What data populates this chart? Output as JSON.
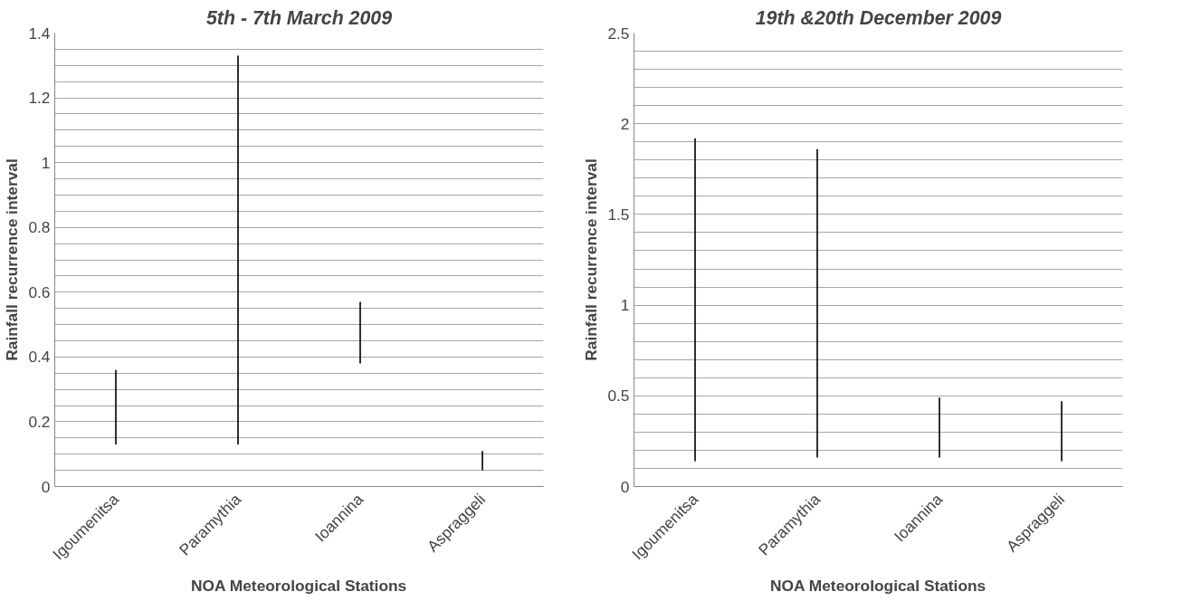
{
  "chart_data": [
    {
      "type": "bar",
      "title": "5th - 7th March 2009",
      "xlabel": "NOA Meteorological Stations",
      "ylabel": "Rainfall recurrence interval",
      "categories": [
        "Igoumenitsa",
        "Paramythia",
        "Ioannina",
        "Aspraggeli"
      ],
      "base": [
        0.13,
        0.13,
        0.38,
        0.05
      ],
      "values": [
        0.23,
        1.2,
        0.19,
        0.06
      ],
      "color": "#000000",
      "ylim": [
        0,
        1.4
      ],
      "yticks": [
        0,
        {
          "value": 0.05,
          "label": null
        },
        {
          "value": 0.1,
          "label": null
        },
        {
          "value": 0.15,
          "label": null
        },
        0.2,
        {
          "value": 0.25,
          "label": null
        },
        {
          "value": 0.3,
          "label": null
        },
        {
          "value": 0.35,
          "label": null
        },
        0.4,
        {
          "value": 0.45,
          "label": null
        },
        {
          "value": 0.5,
          "label": null
        },
        {
          "value": 0.55,
          "label": null
        },
        0.6,
        {
          "value": 0.65,
          "label": null
        },
        {
          "value": 0.7,
          "label": null
        },
        {
          "value": 0.75,
          "label": null
        },
        0.8,
        {
          "value": 0.85,
          "label": null
        },
        {
          "value": 0.9,
          "label": null
        },
        {
          "value": 0.95,
          "label": null
        },
        1,
        {
          "value": 1.05,
          "label": null
        },
        {
          "value": 1.1,
          "label": null
        },
        {
          "value": 1.15,
          "label": null
        },
        1.2,
        {
          "value": 1.25,
          "label": null
        },
        {
          "value": 1.3,
          "label": null
        },
        {
          "value": 1.35,
          "label": null
        },
        1.4
      ],
      "grid": "y"
    },
    {
      "type": "bar",
      "title": "19th &20th December 2009",
      "xlabel": "NOA Meteorological Stations",
      "ylabel": "Rainfall recurrence interval",
      "categories": [
        "Igoumenitsa",
        "Paramythia",
        "Ioannina",
        "Aspraggeli"
      ],
      "base": [
        0.14,
        0.16,
        0.16,
        0.14
      ],
      "values": [
        1.78,
        1.7,
        0.33,
        0.33
      ],
      "color": "#000000",
      "ylim": [
        0,
        2.5
      ],
      "yticks": [
        0,
        {
          "value": 0.1,
          "label": null
        },
        {
          "value": 0.2,
          "label": null
        },
        {
          "value": 0.3,
          "label": null
        },
        {
          "value": 0.4,
          "label": null
        },
        0.5,
        {
          "value": 0.6,
          "label": null
        },
        {
          "value": 0.7,
          "label": null
        },
        {
          "value": 0.8,
          "label": null
        },
        {
          "value": 0.9,
          "label": null
        },
        1,
        {
          "value": 1.1,
          "label": null
        },
        {
          "value": 1.2,
          "label": null
        },
        {
          "value": 1.3,
          "label": null
        },
        {
          "value": 1.4,
          "label": null
        },
        1.5,
        {
          "value": 1.6,
          "label": null
        },
        {
          "value": 1.7,
          "label": null
        },
        {
          "value": 1.8,
          "label": null
        },
        {
          "value": 1.9,
          "label": null
        },
        2,
        {
          "value": 2.1,
          "label": null
        },
        {
          "value": 2.2,
          "label": null
        },
        {
          "value": 2.3,
          "label": null
        },
        {
          "value": 2.4,
          "label": null
        },
        2.5
      ],
      "grid": "y"
    }
  ]
}
